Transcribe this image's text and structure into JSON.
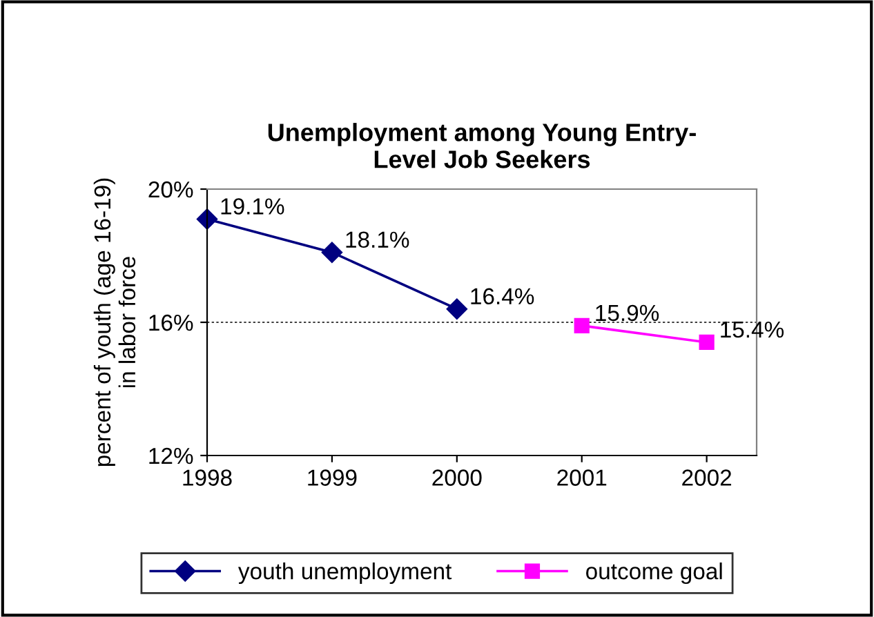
{
  "chart_data": {
    "type": "line",
    "title": "Unemployment among Young Entry-\nLevel Job Seekers",
    "ylabel": "percent of youth (age 16-19)\nin labor force",
    "categories": [
      "1998",
      "1999",
      "2000",
      "2001",
      "2002"
    ],
    "series": [
      {
        "name": "youth unemployment",
        "color": "#000080",
        "marker": "diamond",
        "values": [
          19.1,
          18.1,
          16.4,
          null,
          null
        ],
        "value_labels": [
          "19.1%",
          "18.1%",
          "16.4%",
          null,
          null
        ]
      },
      {
        "name": "outcome goal",
        "color": "#ff00ff",
        "marker": "square",
        "values": [
          null,
          null,
          null,
          15.9,
          15.4
        ],
        "value_labels": [
          null,
          null,
          null,
          "15.9%",
          "15.4%"
        ]
      }
    ],
    "ylim": [
      12,
      20
    ],
    "yticks": [
      {
        "value": 12,
        "label": "12%"
      },
      {
        "value": 16,
        "label": "16%"
      },
      {
        "value": 20,
        "label": "20%"
      }
    ],
    "grid": "y",
    "legend": "bottom"
  }
}
